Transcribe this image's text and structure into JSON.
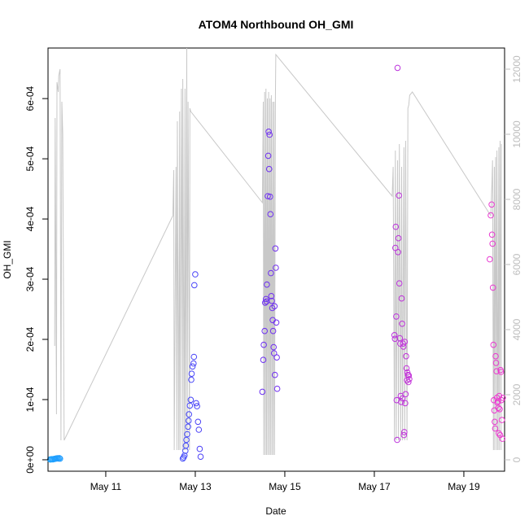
{
  "chart_data": {
    "type": "scatter",
    "title": "ATOM4 Northbound OH_GMI",
    "xlabel": "Date",
    "ylabel": "OH_GMI",
    "x_ticks": [
      "May 11",
      "May 13",
      "May 15",
      "May 17",
      "May 19"
    ],
    "x_tick_days": [
      11,
      13,
      15,
      17,
      19
    ],
    "xlim": [
      9.71,
      19.91
    ],
    "y_ticks": [
      "0e+00",
      "1e-04",
      "2e-04",
      "3e-04",
      "4e-04",
      "5e-04",
      "6e-04"
    ],
    "y_tick_values": [
      0,
      0.0001,
      0.0002,
      0.0003,
      0.0004,
      0.0005,
      0.0006
    ],
    "ylim": [
      -1.9e-05,
      0.000684
    ],
    "y2_ticks": [
      "0",
      "2000",
      "4000",
      "6000",
      "8000",
      "10000",
      "12000"
    ],
    "y2_tick_values": [
      0,
      2000,
      4000,
      6000,
      8000,
      10000,
      12000
    ],
    "y2lim": [
      -350,
      12650
    ],
    "colors": {
      "altitude_line": "#c8c8c8",
      "point_gradient": [
        "#1ea5ff",
        "#2f6bff",
        "#5a2cf2",
        "#8a34f0",
        "#c633d8",
        "#ee3ad0"
      ]
    },
    "altitude_line": {
      "x": [
        9.86,
        9.87,
        9.9,
        9.91,
        9.94,
        9.95,
        9.98,
        10.0,
        10.02,
        10.04,
        10.07,
        12.5,
        12.52,
        12.53,
        12.57,
        12.59,
        12.6,
        12.63,
        12.65,
        12.66,
        12.69,
        12.71,
        12.72,
        12.75,
        12.77,
        12.78,
        12.81,
        12.82,
        12.84,
        12.87,
        12.88,
        12.9,
        14.5,
        14.52,
        14.53,
        14.55,
        14.56,
        14.58,
        14.59,
        14.61,
        14.62,
        14.64,
        14.65,
        14.67,
        14.68,
        14.7,
        14.71,
        14.73,
        14.74,
        14.76,
        14.77,
        14.79,
        14.8,
        17.4,
        17.42,
        17.45,
        17.47,
        17.49,
        17.52,
        17.54,
        17.56,
        17.59,
        17.61,
        17.63,
        17.66,
        17.68,
        17.7,
        17.73,
        17.75,
        17.77,
        17.79,
        17.85,
        19.6,
        19.63,
        19.64,
        19.66,
        19.68,
        19.69,
        19.71,
        19.73,
        19.74,
        19.76,
        19.78,
        19.79,
        19.81,
        19.83,
        19.84
      ],
      "y": [
        3500,
        10500,
        1400,
        11600,
        11300,
        11800,
        12000,
        600,
        11000,
        10000,
        600,
        7500,
        8900,
        300,
        9000,
        300,
        10400,
        300,
        10700,
        300,
        11400,
        300,
        11700,
        300,
        11400,
        300,
        12650,
        300,
        11000,
        300,
        10800,
        10700,
        7900,
        11000,
        150,
        11300,
        150,
        11400,
        150,
        11100,
        150,
        11300,
        150,
        11100,
        150,
        11200,
        150,
        11000,
        150,
        11000,
        150,
        11100,
        12450,
        8100,
        9000,
        600,
        9500,
        600,
        9200,
        600,
        9700,
        600,
        9000,
        600,
        9600,
        600,
        9800,
        600,
        10800,
        10900,
        11200,
        11300,
        7500,
        8600,
        9200,
        300,
        9000,
        300,
        9300,
        300,
        9500,
        300,
        9600,
        300,
        9800,
        300,
        9700
      ]
    },
    "series": [
      {
        "x": [
          9.76,
          9.78,
          9.8,
          9.82,
          9.84,
          9.86,
          9.88,
          9.9,
          9.92,
          9.94,
          9.96,
          9.98
        ],
        "y": [
          5e-07,
          8e-07,
          1e-06,
          7e-07,
          1.2e-06,
          1.5e-06,
          1.8e-06,
          2.2e-06,
          2.5e-06,
          2e-06,
          2.8e-06,
          1.8e-06
        ]
      },
      {
        "x": [
          12.72,
          12.74,
          12.76,
          12.78,
          12.79,
          12.8,
          12.82,
          12.84,
          12.85,
          12.86,
          12.88,
          12.9,
          12.91,
          12.92,
          12.94,
          12.96,
          12.97,
          12.98,
          13.0,
          13.02,
          13.04,
          13.06,
          13.08,
          13.1,
          13.12
        ],
        "y": [
          2e-06,
          4e-06,
          7e-06,
          1.5e-05,
          2.35e-05,
          3.3e-05,
          4.25e-05,
          5.5e-05,
          6.5e-05,
          7.55e-05,
          9e-05,
          9.95e-05,
          0.000133,
          0.000143,
          0.000155,
          0.00016,
          0.000171,
          0.00029,
          0.000308,
          9.4e-05,
          8.9e-05,
          6.3e-05,
          5e-05,
          1.8e-05,
          5e-06
        ]
      },
      {
        "x": [
          14.5,
          14.52,
          14.53,
          14.55,
          14.56,
          14.58,
          14.59,
          14.6,
          14.62,
          14.63,
          14.64,
          14.65,
          14.66,
          14.67,
          14.68,
          14.69,
          14.7,
          14.71,
          14.72,
          14.73,
          14.74,
          14.75,
          14.76,
          14.77,
          14.78,
          14.79,
          14.8,
          14.81,
          14.82,
          14.83
        ],
        "y": [
          0.000113,
          0.000166,
          0.000191,
          0.000214,
          0.000261,
          0.000267,
          0.000263,
          0.000291,
          0.000438,
          0.000505,
          0.000545,
          0.000483,
          0.00054,
          0.000437,
          0.000408,
          0.00031,
          0.000272,
          0.000264,
          0.000252,
          0.000232,
          0.000214,
          0.000187,
          0.000177,
          0.000255,
          0.000141,
          0.000351,
          0.000319,
          0.000228,
          0.00017,
          0.000118
        ]
      },
      {
        "x": [
          17.45,
          17.46,
          17.47,
          17.48,
          17.49,
          17.5,
          17.51,
          17.52,
          17.53,
          17.54,
          17.55,
          17.56,
          17.57,
          17.58,
          17.59,
          17.6,
          17.61,
          17.62,
          17.63,
          17.64,
          17.65,
          17.66,
          17.67,
          17.68,
          17.69,
          17.7,
          17.71,
          17.72,
          17.73,
          17.74,
          17.75,
          17.76,
          17.77,
          17.78
        ],
        "y": [
          0.000207,
          0.000201,
          0.000352,
          0.000387,
          0.000238,
          9.9e-05,
          3.3e-05,
          0.000651,
          0.000345,
          0.000368,
          0.000439,
          0.000293,
          0.000202,
          0.000193,
          0.000106,
          9.6e-05,
          0.000268,
          0.000226,
          0.000102,
          0.000193,
          0.000188,
          4.1e-05,
          4.6e-05,
          0.000196,
          9.4e-05,
          0.000109,
          0.000172,
          0.000152,
          0.000132,
          0.000145,
          0.000141,
          0.000129,
          0.00014,
          0.000134
        ]
      },
      {
        "x": [
          19.58,
          19.6,
          19.62,
          19.63,
          19.64,
          19.65,
          19.66,
          19.67,
          19.68,
          19.69,
          19.7,
          19.71,
          19.72,
          19.73,
          19.74,
          19.75,
          19.76,
          19.77,
          19.78,
          19.79,
          19.8,
          19.81,
          19.82,
          19.83,
          19.84,
          19.85,
          19.86,
          19.87
        ],
        "y": [
          0.000333,
          0.000406,
          0.000424,
          0.000374,
          0.000359,
          0.000286,
          0.000191,
          9.9e-05,
          8.2e-05,
          6.3e-05,
          5.2e-05,
          0.000172,
          0.000161,
          0.000147,
          0.000103,
          9.5e-05,
          9.7e-05,
          8.6e-05,
          4.4e-05,
          0.000106,
          8.4e-05,
          4.1e-05,
          0.000149,
          0.000146,
          9.9e-05,
          6.6e-05,
          3.5e-05,
          0.000103
        ]
      }
    ]
  }
}
